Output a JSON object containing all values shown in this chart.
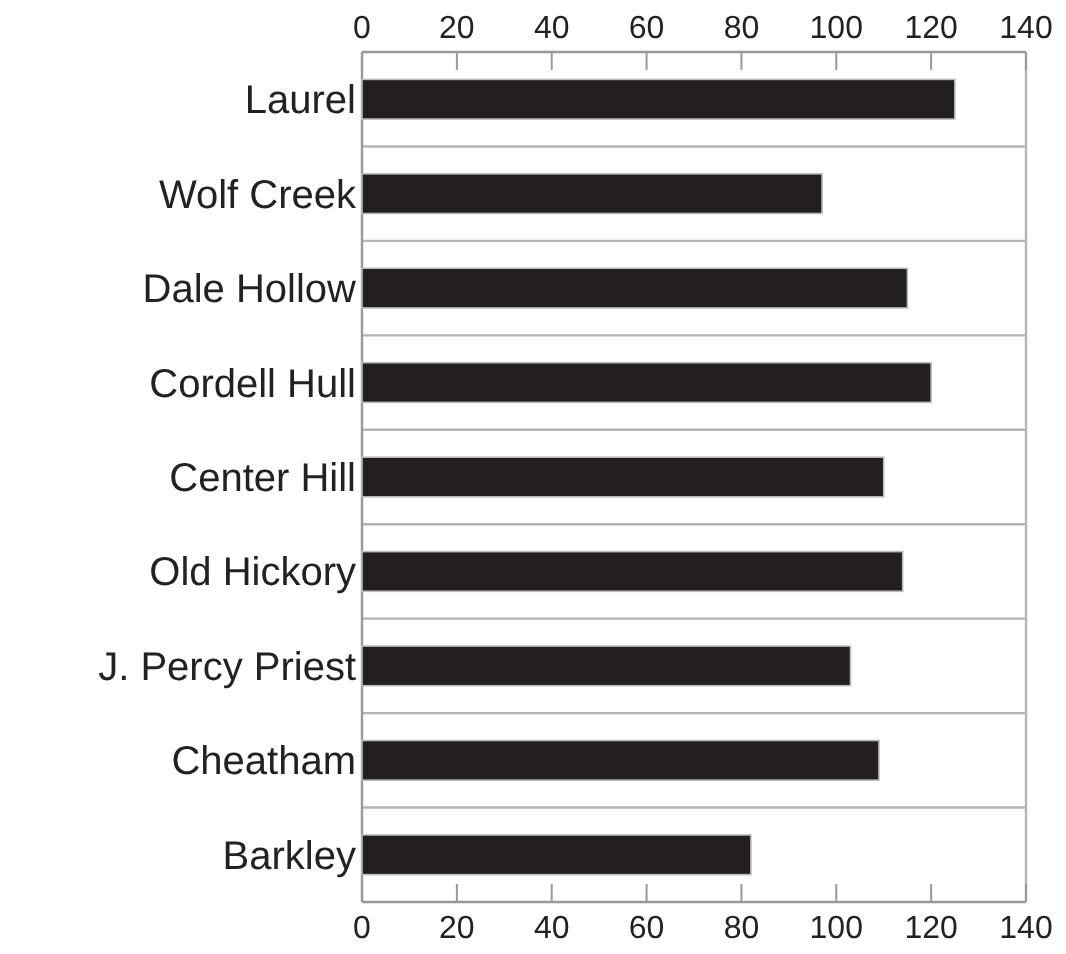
{
  "chart_data": {
    "type": "bar",
    "orientation": "horizontal",
    "categories": [
      "Laurel",
      "Wolf Creek",
      "Dale Hollow",
      "Cordell Hull",
      "Center Hill",
      "Old Hickory",
      "J. Percy Priest",
      "Cheatham",
      "Barkley"
    ],
    "values": [
      125,
      97,
      115,
      120,
      110,
      114,
      103,
      109,
      82
    ],
    "color": "#231f20",
    "xlim": [
      0,
      140
    ],
    "xticks": [
      0,
      20,
      40,
      60,
      80,
      100,
      120,
      140
    ],
    "x2lim": [
      0,
      140
    ],
    "x2ticks": [
      0,
      20,
      40,
      60,
      80,
      100,
      120,
      140
    ],
    "grid": "y"
  }
}
